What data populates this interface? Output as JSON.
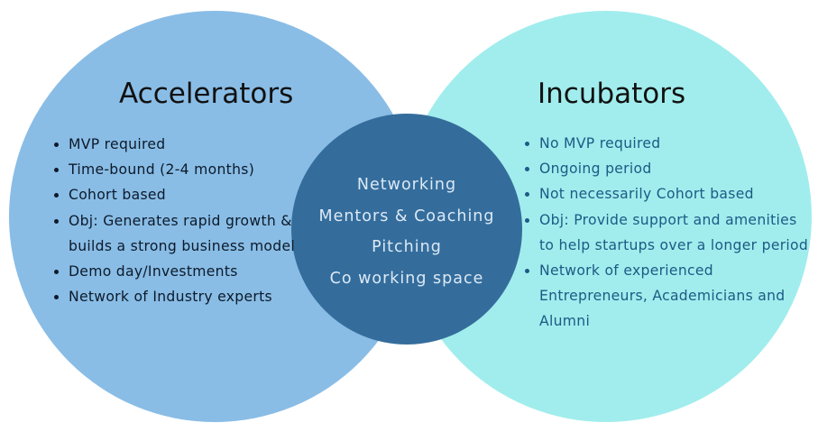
{
  "colors": {
    "left_circle": "#89bde6",
    "right_circle": "#a1eded",
    "center_circle": "#346d9c",
    "center_text": "#dce9f5",
    "right_text": "#1d5a85",
    "left_text": "#0d1a2a"
  },
  "accelerators": {
    "title": "Accelerators",
    "items": [
      "MVP required",
      "Time-bound (2-4 months)",
      "Cohort based",
      "Obj: Generates rapid growth & builds a strong business model",
      "Demo day/Investments",
      "Network of Industry experts"
    ]
  },
  "incubators": {
    "title": "Incubators",
    "items": [
      "No MVP required",
      "Ongoing period",
      "Not necessarily Cohort based",
      "Obj: Provide support and amenities to help startups over a longer period",
      "Network of experienced Entrepreneurs, Academicians and Alumni"
    ]
  },
  "common": {
    "items": [
      "Networking",
      "Mentors & Coaching",
      "Pitching",
      "Co working space"
    ]
  }
}
